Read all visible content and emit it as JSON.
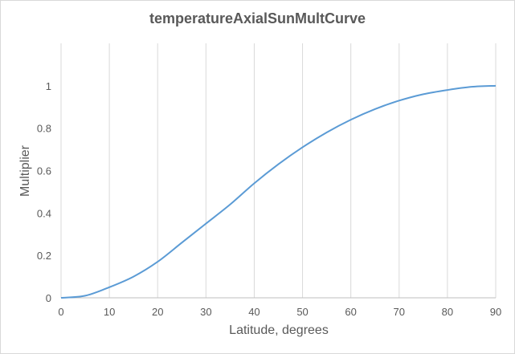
{
  "chart_data": {
    "type": "line",
    "title": "temperatureAxialSunMultCurve",
    "xlabel": "Latitude, degrees",
    "ylabel": "Multiplier",
    "xlim": [
      0,
      90
    ],
    "ylim": [
      0,
      1.2
    ],
    "x_ticks": [
      0,
      10,
      20,
      30,
      40,
      50,
      60,
      70,
      80,
      90
    ],
    "y_ticks": [
      0,
      0.2,
      0.4,
      0.6,
      0.8,
      1
    ],
    "y_tick_labels": [
      "0",
      "0.2",
      "0.4",
      "0.6",
      "0.8",
      "1"
    ],
    "grid": true,
    "legend": "none",
    "series": [
      {
        "color": "#5b9bd5",
        "x": [
          0,
          5,
          10,
          15,
          20,
          25,
          30,
          35,
          40,
          45,
          50,
          55,
          60,
          65,
          70,
          75,
          80,
          85,
          90
        ],
        "y": [
          0,
          0.01,
          0.05,
          0.1,
          0.17,
          0.26,
          0.35,
          0.44,
          0.54,
          0.63,
          0.71,
          0.78,
          0.84,
          0.89,
          0.93,
          0.96,
          0.98,
          0.995,
          1.0
        ]
      }
    ]
  }
}
